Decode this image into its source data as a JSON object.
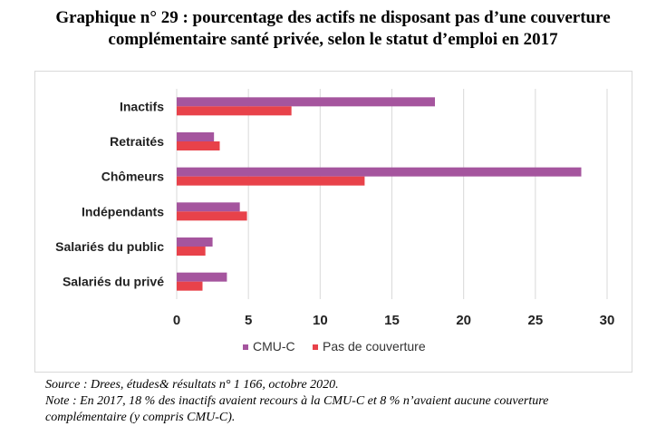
{
  "title_line1": "Graphique n° 29 : pourcentage des actifs ne disposant pas d’une couverture",
  "title_line2": "complémentaire santé privée, selon le statut d’emploi en 2017",
  "source": "Source : Drees, études& résultats n° 1 166, octobre 2020.",
  "note_line1": "Note : En 2017, 18 % des inactifs avaient recours à la CMU-C et 8 % n’avaient aucune couverture",
  "note_line2": "complémentaire (y compris CMU-C).",
  "chart_data": {
    "type": "bar",
    "orientation": "horizontal",
    "categories": [
      "Inactifs",
      "Retraités",
      "Chômeurs",
      "Indépendants",
      "Salariés du public",
      "Salariés du privé"
    ],
    "series": [
      {
        "name": "CMU-C",
        "values": [
          18,
          2.6,
          28.2,
          4.4,
          2.5,
          3.5
        ],
        "color": "#a5559e"
      },
      {
        "name": "Pas de couverture",
        "values": [
          8,
          3,
          13.1,
          4.9,
          2,
          1.8
        ],
        "color": "#e8424a"
      }
    ],
    "xlim": [
      0,
      30
    ],
    "xticks": [
      "0",
      "5",
      "10",
      "15",
      "20",
      "25",
      "30"
    ],
    "grid": true,
    "legend_position": "bottom"
  }
}
